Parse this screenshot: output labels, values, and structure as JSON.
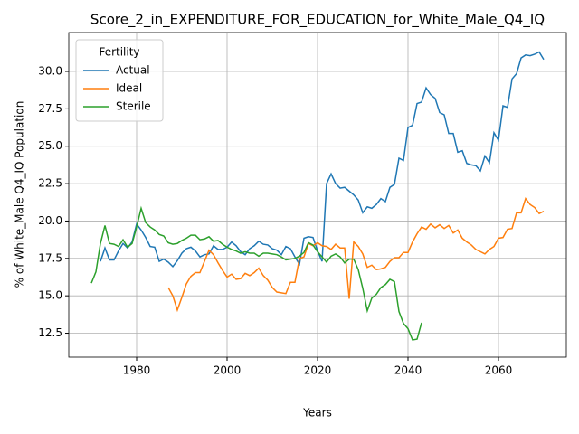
{
  "chart_data": {
    "type": "line",
    "title": "Score_2_in_EXPENDITURE_FOR_EDUCATION_for_White_Male_Q4_IQ",
    "x_label": "Years",
    "y_label": "% of White_Male Q4_IQ Population",
    "legend_title": "Fertility",
    "legend": "upper left",
    "grid": true,
    "xlim": [
      1965,
      2075
    ],
    "ylim": [
      10.9,
      32.6
    ],
    "xticks": [
      1980,
      2000,
      2020,
      2040,
      2060
    ],
    "yticks": [
      12.5,
      {
        "value": 15,
        "label": "15.0"
      },
      17.5,
      {
        "value": 20,
        "label": "20.0"
      },
      22.5,
      {
        "value": 25,
        "label": "25.0"
      },
      27.5,
      {
        "value": 30,
        "label": "30.0"
      }
    ],
    "x": [
      1970,
      1971,
      1972,
      1973,
      1974,
      1975,
      1976,
      1977,
      1978,
      1979,
      1980,
      1981,
      1982,
      1983,
      1984,
      1985,
      1986,
      1987,
      1988,
      1989,
      1990,
      1991,
      1992,
      1993,
      1994,
      1995,
      1996,
      1997,
      1998,
      1999,
      2000,
      2001,
      2002,
      2003,
      2004,
      2005,
      2006,
      2007,
      2008,
      2009,
      2010,
      2011,
      2012,
      2013,
      2014,
      2015,
      2016,
      2017,
      2018,
      2019,
      2020,
      2021,
      2022,
      2023,
      2024,
      2025,
      2026,
      2027,
      2028,
      2029,
      2030,
      2031,
      2032,
      2033,
      2034,
      2035,
      2036,
      2037,
      2038,
      2039,
      2040,
      2041,
      2042,
      2043,
      2044,
      2045,
      2046,
      2047,
      2048,
      2049,
      2050,
      2051,
      2052,
      2053,
      2054,
      2055,
      2056,
      2057,
      2058,
      2059,
      2060,
      2061,
      2062,
      2063,
      2064,
      2065,
      2066,
      2067,
      2068,
      2069,
      2070
    ],
    "series": [
      {
        "name": "Actual",
        "color": "#1f77b4",
        "values": [
          null,
          null,
          17.3,
          18.2,
          17.4,
          17.4,
          18.0,
          18.5,
          18.2,
          18.6,
          19.8,
          19.4,
          18.9,
          18.3,
          18.25,
          17.3,
          17.45,
          17.25,
          16.95,
          17.35,
          17.85,
          18.15,
          18.25,
          18.0,
          17.6,
          17.75,
          17.8,
          18.35,
          18.1,
          18.1,
          18.25,
          18.6,
          18.35,
          17.95,
          17.75,
          18.15,
          18.35,
          18.65,
          18.45,
          18.4,
          18.15,
          18.05,
          17.75,
          18.3,
          18.15,
          17.6,
          17.1,
          18.85,
          18.95,
          18.9,
          18.0,
          17.3,
          22.5,
          23.15,
          22.5,
          22.2,
          22.25,
          22.0,
          21.75,
          21.4,
          20.55,
          20.95,
          20.85,
          21.1,
          21.5,
          21.3,
          22.25,
          22.45,
          24.2,
          24.05,
          26.25,
          26.4,
          27.85,
          27.95,
          28.9,
          28.45,
          28.2,
          27.25,
          27.1,
          25.85,
          25.85,
          24.6,
          24.7,
          23.85,
          23.75,
          23.7,
          23.35,
          24.35,
          23.9,
          25.9,
          25.4,
          27.7,
          27.6,
          29.5,
          29.85,
          30.9,
          31.1,
          31.05,
          31.15,
          31.3,
          30.8
        ]
      },
      {
        "name": "Ideal",
        "color": "#ff7f0e",
        "values": [
          null,
          null,
          null,
          null,
          null,
          null,
          null,
          null,
          null,
          null,
          null,
          null,
          null,
          null,
          null,
          null,
          null,
          15.55,
          15.0,
          14.05,
          14.9,
          15.8,
          16.3,
          16.55,
          16.55,
          17.3,
          18.05,
          17.75,
          17.2,
          16.7,
          16.25,
          16.45,
          16.1,
          16.15,
          16.5,
          16.35,
          16.55,
          16.85,
          16.35,
          16.05,
          15.55,
          15.25,
          15.2,
          15.15,
          15.9,
          15.9,
          17.5,
          17.6,
          18.5,
          18.35,
          18.55,
          18.35,
          18.3,
          18.1,
          18.45,
          18.2,
          18.2,
          14.8,
          18.6,
          18.3,
          17.8,
          16.9,
          17.05,
          16.75,
          16.8,
          16.9,
          17.3,
          17.55,
          17.55,
          17.9,
          17.9,
          18.6,
          19.15,
          19.6,
          19.45,
          19.8,
          19.55,
          19.75,
          19.5,
          19.7,
          19.2,
          19.4,
          18.85,
          18.6,
          18.4,
          18.1,
          17.95,
          17.8,
          18.1,
          18.3,
          18.85,
          18.9,
          19.45,
          19.5,
          20.55,
          20.55,
          21.5,
          21.1,
          20.9,
          20.5,
          20.65
        ]
      },
      {
        "name": "Sterile",
        "color": "#2ca02c",
        "values": [
          15.85,
          16.6,
          18.5,
          19.7,
          18.5,
          18.45,
          18.3,
          18.75,
          18.25,
          18.5,
          19.6,
          20.85,
          19.9,
          19.6,
          19.4,
          19.1,
          19.0,
          18.55,
          18.45,
          18.5,
          18.7,
          18.85,
          19.05,
          19.05,
          18.75,
          18.8,
          18.95,
          18.65,
          18.7,
          18.45,
          18.25,
          18.1,
          18.0,
          17.85,
          17.95,
          17.85,
          17.85,
          17.65,
          17.85,
          17.85,
          17.8,
          17.75,
          17.6,
          17.4,
          17.45,
          17.5,
          17.65,
          17.9,
          18.55,
          18.4,
          17.95,
          17.6,
          17.25,
          17.65,
          17.8,
          17.6,
          17.2,
          17.45,
          17.45,
          16.75,
          15.5,
          14.0,
          14.85,
          15.1,
          15.55,
          15.75,
          16.1,
          15.95,
          13.95,
          13.15,
          12.8,
          12.05,
          12.1,
          13.2,
          null,
          null,
          null,
          null,
          null,
          null,
          null,
          null,
          null,
          null,
          null,
          null,
          null,
          null,
          null,
          null,
          null,
          null,
          null,
          null,
          null,
          null,
          null,
          null,
          null,
          null,
          null
        ]
      }
    ]
  }
}
